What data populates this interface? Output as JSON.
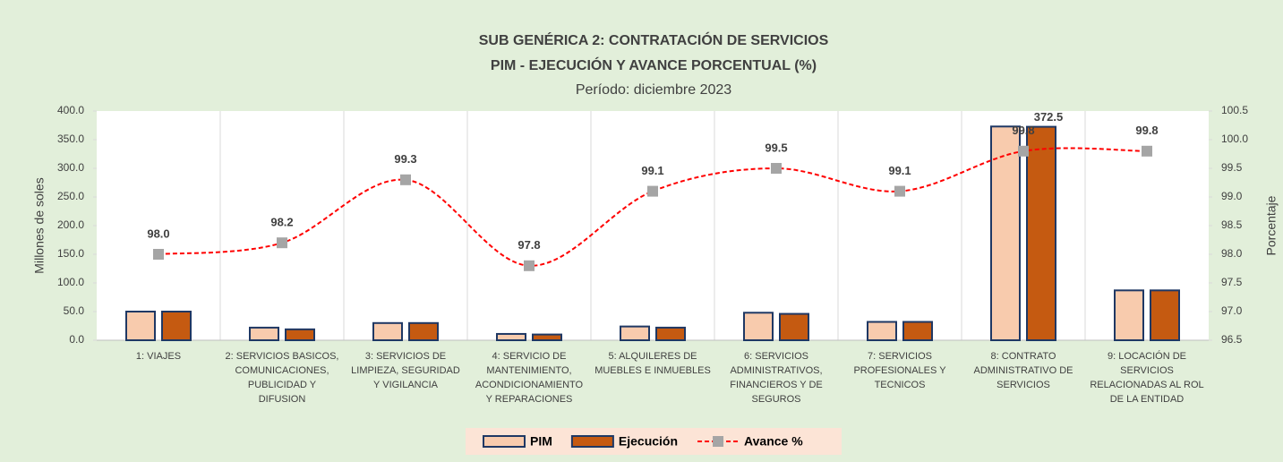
{
  "chart_data": {
    "type": "bar-line",
    "title": "SUB GENÉRICA 2: CONTRATACIÓN DE SERVICIOS",
    "subtitle": "PIM - EJECUCIÓN Y AVANCE PORCENTUAL (%)",
    "period": "Período: diciembre 2023",
    "y_label": "Millones de soles",
    "y2_label": "Porcentaje",
    "categories": [
      "1: VIAJES",
      "2: SERVICIOS BASICOS,\nCOMUNICACIONES,\nPUBLICIDAD Y\nDIFUSION",
      "3: SERVICIOS DE\nLIMPIEZA, SEGURIDAD\nY VIGILANCIA",
      "4: SERVICIO DE\nMANTENIMIENTO,\nACONDICIONAMIENTO\nY REPARACIONES",
      "5: ALQUILERES DE\nMUEBLES E INMUEBLES",
      "6: SERVICIOS\nADMINISTRATIVOS,\nFINANCIEROS Y DE\nSEGUROS",
      "7: SERVICIOS\nPROFESIONALES Y\nTECNICOS",
      "8: CONTRATO\nADMINISTRATIVO DE\nSERVICIOS",
      "9: LOCACIÓN DE\nSERVICIOS\nRELACIONADAS AL ROL\nDE LA ENTIDAD"
    ],
    "series": [
      {
        "name": "PIM",
        "type": "bar",
        "color": "#f8cbad",
        "values": [
          50,
          22,
          30,
          11,
          24,
          48,
          32,
          373,
          87
        ]
      },
      {
        "name": "Ejecución",
        "type": "bar",
        "color": "#c55a11",
        "values": [
          50,
          19,
          30,
          10,
          22,
          46,
          32,
          372.5,
          87
        ],
        "value_labels": [
          null,
          null,
          null,
          null,
          null,
          null,
          null,
          "372.5",
          null
        ]
      },
      {
        "name": "Avance %",
        "type": "line",
        "axis": "y2",
        "color": "#ff0000",
        "marker_color": "#a5a5a5",
        "values": [
          98.0,
          98.2,
          99.3,
          97.8,
          99.1,
          99.5,
          99.1,
          99.8,
          99.8
        ],
        "value_labels": [
          "98.0",
          "98.2",
          "99.3",
          "97.8",
          "99.1",
          "99.5",
          "99.1",
          "99.8",
          "99.8"
        ]
      }
    ],
    "ylim": [
      0,
      400
    ],
    "yticks": [
      {
        "value": 0,
        "label": "0.0"
      },
      {
        "value": 50,
        "label": "50.0"
      },
      {
        "value": 100,
        "label": "100.0"
      },
      {
        "value": 150,
        "label": "150.0"
      },
      {
        "value": 200,
        "label": "200.0"
      },
      {
        "value": 250,
        "label": "250.0"
      },
      {
        "value": 300,
        "label": "300.0"
      },
      {
        "value": 350,
        "label": "350.0"
      },
      {
        "value": 400,
        "label": "400.0"
      }
    ],
    "y2lim": [
      96.5,
      100.5
    ],
    "y2ticks": [
      96.5,
      {
        "value": 97,
        "label": "97.0"
      },
      97.5,
      {
        "value": 98,
        "label": "98.0"
      },
      98.5,
      {
        "value": 99,
        "label": "99.0"
      },
      99.5,
      {
        "value": 100,
        "label": "100.0"
      },
      100.5
    ],
    "legend": "bottom"
  }
}
